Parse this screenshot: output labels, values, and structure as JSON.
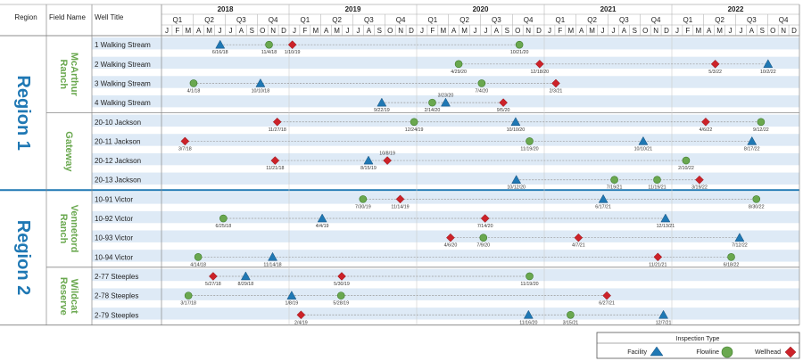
{
  "headers": {
    "region": "Region",
    "field": "Field Name",
    "well": "Well Title"
  },
  "years": [
    "2018",
    "2019",
    "2020",
    "2021",
    "2022"
  ],
  "quarters": [
    "Q1",
    "Q2",
    "Q3",
    "Q4"
  ],
  "months": [
    "J",
    "F",
    "M",
    "A",
    "M",
    "J",
    "J",
    "A",
    "S",
    "O",
    "N",
    "D"
  ],
  "colors": {
    "facility": "#1f78b4",
    "flowline": "#6aa84f",
    "wellhead": "#cc2229",
    "region": "#1f78b4",
    "field": "#6aa84f",
    "band": "#deeaf6"
  },
  "legend": {
    "title": "Inspection Type",
    "facility": "Facility",
    "flowline": "Flowline",
    "wellhead": "Wellhead"
  },
  "chart_data": {
    "type": "timeline",
    "x_range": [
      "2018-01-01",
      "2022-12-31"
    ],
    "regions": [
      {
        "name": "Region 1",
        "fields": [
          {
            "name": "McArthur Ranch",
            "lines": [
              "McArthur",
              "Ranch"
            ],
            "wells": [
              {
                "name": "1 Walking Stream",
                "events": [
                  {
                    "type": "facility",
                    "date": "2018-06-16",
                    "label": "6/16/18"
                  },
                  {
                    "type": "flowline",
                    "date": "2018-11-04",
                    "label": "11/4/18"
                  },
                  {
                    "type": "wellhead",
                    "date": "2019-01-10",
                    "label": "1/10/19"
                  },
                  {
                    "type": "flowline",
                    "date": "2020-10-21",
                    "label": "10/21/20"
                  }
                ]
              },
              {
                "name": "2 Walking Stream",
                "events": [
                  {
                    "type": "flowline",
                    "date": "2020-04-29",
                    "label": "4/29/20"
                  },
                  {
                    "type": "wellhead",
                    "date": "2020-12-18",
                    "label": "12/18/20"
                  },
                  {
                    "type": "wellhead",
                    "date": "2022-05-03",
                    "label": "5/3/22"
                  },
                  {
                    "type": "facility",
                    "date": "2022-10-02",
                    "label": "10/2/22"
                  }
                ]
              },
              {
                "name": "3 Walking Stream",
                "events": [
                  {
                    "type": "flowline",
                    "date": "2018-04-01",
                    "label": "4/1/18"
                  },
                  {
                    "type": "facility",
                    "date": "2018-10-10",
                    "label": "10/10/18"
                  },
                  {
                    "type": "flowline",
                    "date": "2020-07-04",
                    "label": "7/4/20"
                  },
                  {
                    "type": "wellhead",
                    "date": "2021-02-03",
                    "label": "2/3/21"
                  }
                ]
              },
              {
                "name": "4 Walking Stream",
                "events": [
                  {
                    "type": "facility",
                    "date": "2019-09-22",
                    "label": "9/22/19"
                  },
                  {
                    "type": "flowline",
                    "date": "2020-02-14",
                    "label": "2/14/20"
                  },
                  {
                    "type": "facility",
                    "date": "2020-03-23",
                    "label": "3/23/20"
                  },
                  {
                    "type": "wellhead",
                    "date": "2020-09-05",
                    "label": "9/5/20"
                  }
                ]
              }
            ]
          },
          {
            "name": "Gateway",
            "lines": [
              "Gateway"
            ],
            "wells": [
              {
                "name": "20-10 Jackson",
                "events": [
                  {
                    "type": "wellhead",
                    "date": "2018-11-27",
                    "label": "11/27/18"
                  },
                  {
                    "type": "flowline",
                    "date": "2019-12-24",
                    "label": "12/24/19"
                  },
                  {
                    "type": "facility",
                    "date": "2020-10-10",
                    "label": "10/10/20"
                  },
                  {
                    "type": "wellhead",
                    "date": "2022-04-06",
                    "label": "4/6/22"
                  },
                  {
                    "type": "flowline",
                    "date": "2022-09-12",
                    "label": "9/12/22"
                  }
                ]
              },
              {
                "name": "20-11 Jackson",
                "events": [
                  {
                    "type": "wellhead",
                    "date": "2018-03-07",
                    "label": "3/7/18"
                  },
                  {
                    "type": "flowline",
                    "date": "2020-11-19",
                    "label": "11/19/20"
                  },
                  {
                    "type": "facility",
                    "date": "2021-10-10",
                    "label": "10/10/21"
                  },
                  {
                    "type": "facility",
                    "date": "2022-08-17",
                    "label": "8/17/22"
                  }
                ]
              },
              {
                "name": "20-12 Jackson",
                "events": [
                  {
                    "type": "wellhead",
                    "date": "2018-11-21",
                    "label": "11/21/18"
                  },
                  {
                    "type": "facility",
                    "date": "2019-08-15",
                    "label": "8/15/19"
                  },
                  {
                    "type": "wellhead",
                    "date": "2019-10-08",
                    "label": "10/8/19"
                  },
                  {
                    "type": "flowline",
                    "date": "2022-02-10",
                    "label": "2/10/22"
                  }
                ]
              },
              {
                "name": "20-13 Jackson",
                "events": [
                  {
                    "type": "facility",
                    "date": "2020-10-12",
                    "label": "10/12/20"
                  },
                  {
                    "type": "flowline",
                    "date": "2021-07-19",
                    "label": "7/19/21"
                  },
                  {
                    "type": "flowline",
                    "date": "2021-11-19",
                    "label": "11/19/21"
                  },
                  {
                    "type": "wellhead",
                    "date": "2022-03-19",
                    "label": "3/19/22"
                  }
                ]
              }
            ]
          }
        ]
      },
      {
        "name": "Region 2",
        "fields": [
          {
            "name": "Vennetord Ranch",
            "lines": [
              "Vennetord",
              "Ranch"
            ],
            "wells": [
              {
                "name": "10-91 Victor",
                "events": [
                  {
                    "type": "flowline",
                    "date": "2019-07-30",
                    "label": "7/30/19"
                  },
                  {
                    "type": "wellhead",
                    "date": "2019-11-14",
                    "label": "11/14/19"
                  },
                  {
                    "type": "facility",
                    "date": "2021-06-17",
                    "label": "6/17/21"
                  },
                  {
                    "type": "flowline",
                    "date": "2022-08-30",
                    "label": "8/30/22"
                  }
                ]
              },
              {
                "name": "10-92 Victor",
                "events": [
                  {
                    "type": "flowline",
                    "date": "2018-06-25",
                    "label": "6/25/18"
                  },
                  {
                    "type": "facility",
                    "date": "2019-04-04",
                    "label": "4/4/19"
                  },
                  {
                    "type": "wellhead",
                    "date": "2020-07-14",
                    "label": "7/14/20"
                  },
                  {
                    "type": "facility",
                    "date": "2021-12-13",
                    "label": "12/13/21"
                  }
                ]
              },
              {
                "name": "10-93 Victor",
                "events": [
                  {
                    "type": "wellhead",
                    "date": "2020-04-06",
                    "label": "4/6/20"
                  },
                  {
                    "type": "flowline",
                    "date": "2020-07-09",
                    "label": "7/9/20"
                  },
                  {
                    "type": "wellhead",
                    "date": "2021-04-07",
                    "label": "4/7/21"
                  },
                  {
                    "type": "facility",
                    "date": "2022-07-12",
                    "label": "7/12/22"
                  }
                ]
              },
              {
                "name": "10-94 Victor",
                "events": [
                  {
                    "type": "flowline",
                    "date": "2018-04-14",
                    "label": "4/14/18"
                  },
                  {
                    "type": "facility",
                    "date": "2018-11-14",
                    "label": "11/14/18"
                  },
                  {
                    "type": "wellhead",
                    "date": "2021-11-21",
                    "label": "11/21/21"
                  },
                  {
                    "type": "flowline",
                    "date": "2022-06-18",
                    "label": "6/18/22"
                  }
                ]
              }
            ]
          },
          {
            "name": "Wildcat Reserve",
            "lines": [
              "Wildcat",
              "Reserve"
            ],
            "wells": [
              {
                "name": "2-77 Steeples",
                "events": [
                  {
                    "type": "wellhead",
                    "date": "2018-05-27",
                    "label": "5/27/18"
                  },
                  {
                    "type": "facility",
                    "date": "2018-08-29",
                    "label": "8/29/18"
                  },
                  {
                    "type": "wellhead",
                    "date": "2019-05-30",
                    "label": "5/30/19"
                  },
                  {
                    "type": "flowline",
                    "date": "2020-11-19",
                    "label": "11/19/20"
                  }
                ]
              },
              {
                "name": "2-78 Steeples",
                "events": [
                  {
                    "type": "flowline",
                    "date": "2018-03-17",
                    "label": "3/17/18"
                  },
                  {
                    "type": "facility",
                    "date": "2019-01-08",
                    "label": "1/8/19"
                  },
                  {
                    "type": "flowline",
                    "date": "2019-05-28",
                    "label": "5/28/19"
                  },
                  {
                    "type": "wellhead",
                    "date": "2021-06-27",
                    "label": "6/27/21"
                  }
                ]
              },
              {
                "name": "2-79 Steeples",
                "events": [
                  {
                    "type": "wellhead",
                    "date": "2019-02-04",
                    "label": "2/4/19"
                  },
                  {
                    "type": "facility",
                    "date": "2020-11-16",
                    "label": "11/16/20"
                  },
                  {
                    "type": "flowline",
                    "date": "2021-03-15",
                    "label": "3/15/21"
                  },
                  {
                    "type": "facility",
                    "date": "2021-12-07",
                    "label": "12/7/21"
                  }
                ]
              }
            ]
          }
        ]
      }
    ]
  }
}
